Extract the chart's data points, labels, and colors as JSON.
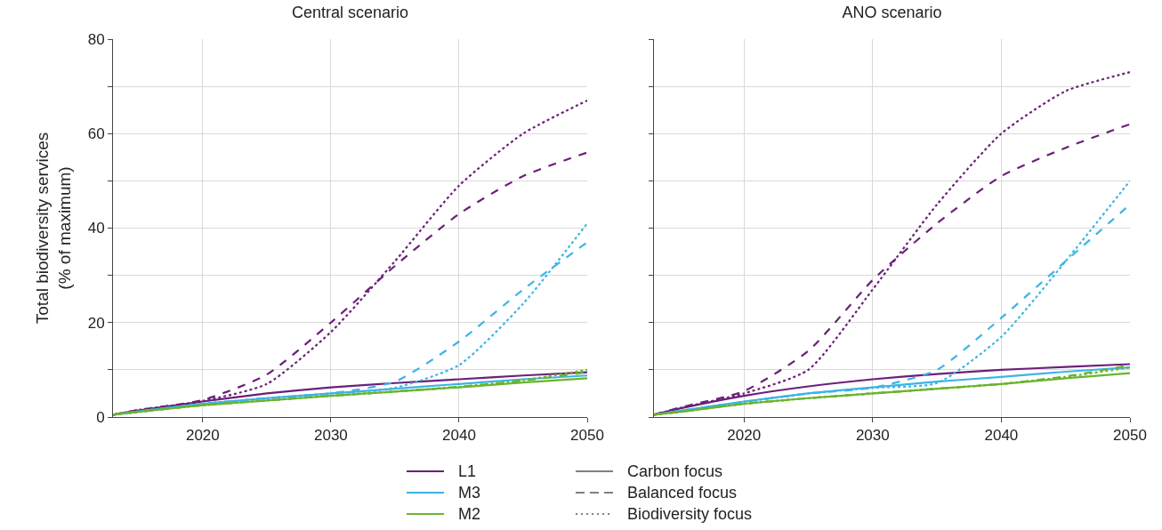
{
  "chart_data": [
    {
      "type": "line",
      "title": "Central scenario",
      "ylabel": "Total biodiversity services\n(% of maximum)",
      "x": [
        2013,
        2015,
        2020,
        2025,
        2030,
        2035,
        2040,
        2045,
        2050
      ],
      "series": [
        {
          "color": "#6b2078",
          "line_style": "solid",
          "values": [
            0.5,
            1.4,
            3.3,
            5.0,
            6.3,
            7.2,
            8.0,
            8.8,
            9.5
          ]
        },
        {
          "color": "#6b2078",
          "line_style": "dashed",
          "values": [
            0.5,
            1.5,
            3.6,
            9,
            20,
            32,
            43,
            51,
            56
          ]
        },
        {
          "color": "#6b2078",
          "line_style": "dotted",
          "values": [
            0.5,
            1.5,
            3.4,
            7,
            18,
            33,
            49,
            60,
            67
          ]
        },
        {
          "color": "#3cb4e6",
          "line_style": "solid",
          "values": [
            0.5,
            1.2,
            2.8,
            4.0,
            5.0,
            6.0,
            7.0,
            8.0,
            8.8
          ]
        },
        {
          "color": "#3cb4e6",
          "line_style": "dashed",
          "values": [
            0.5,
            1.2,
            2.8,
            4.0,
            5.0,
            7.5,
            16,
            27,
            37
          ]
        },
        {
          "color": "#3cb4e6",
          "line_style": "dotted",
          "values": [
            0.5,
            1.2,
            2.8,
            4.0,
            5.0,
            6.2,
            11,
            24,
            41
          ]
        },
        {
          "color": "#6ab42d",
          "line_style": "solid",
          "values": [
            0.5,
            1.1,
            2.5,
            3.5,
            4.5,
            5.4,
            6.3,
            7.3,
            8.2
          ]
        },
        {
          "color": "#6ab42d",
          "line_style": "dashed",
          "values": [
            0.5,
            1.1,
            2.5,
            3.5,
            4.5,
            5.4,
            6.4,
            7.7,
            9.5
          ]
        },
        {
          "color": "#6ab42d",
          "line_style": "dotted",
          "values": [
            0.5,
            1.1,
            2.5,
            3.5,
            4.5,
            5.4,
            6.4,
            7.8,
            10
          ]
        }
      ],
      "xlim": [
        2013,
        2050
      ],
      "xticks": [
        2020,
        2030,
        2040,
        2050
      ],
      "ylim": [
        0,
        80
      ],
      "yticks": [
        0,
        {
          "value": 10,
          "label": null
        },
        20,
        {
          "value": 30,
          "label": null
        },
        40,
        {
          "value": 50,
          "label": null
        },
        60,
        {
          "value": 70,
          "label": null
        },
        80
      ],
      "grid": true,
      "annotations": [
        "L1",
        "M3",
        "M2",
        "Carbon focus",
        "Balanced focus",
        "Biodiversity focus"
      ]
    },
    {
      "type": "line",
      "title": "ANO scenario",
      "x": [
        2013,
        2015,
        2020,
        2025,
        2030,
        2035,
        2040,
        2045,
        2050
      ],
      "series": [
        {
          "color": "#6b2078",
          "line_style": "solid",
          "values": [
            0.5,
            1.8,
            4.5,
            6.5,
            8.0,
            9.1,
            10.0,
            10.6,
            11.2
          ]
        },
        {
          "color": "#6b2078",
          "line_style": "dashed",
          "values": [
            0.5,
            2.0,
            5.5,
            14,
            29,
            41,
            51,
            57,
            62
          ]
        },
        {
          "color": "#6b2078",
          "line_style": "dotted",
          "values": [
            0.5,
            1.9,
            5.0,
            10,
            27,
            45,
            60,
            69,
            73
          ]
        },
        {
          "color": "#3cb4e6",
          "line_style": "solid",
          "values": [
            0.5,
            1.3,
            3.3,
            5.0,
            6.3,
            7.5,
            8.5,
            9.6,
            10.5
          ]
        },
        {
          "color": "#3cb4e6",
          "line_style": "dashed",
          "values": [
            0.5,
            1.3,
            3.2,
            5.0,
            6.2,
            10,
            21,
            33,
            45
          ]
        },
        {
          "color": "#3cb4e6",
          "line_style": "dotted",
          "values": [
            0.5,
            1.3,
            3.2,
            5.0,
            6.2,
            7.2,
            17,
            33,
            50
          ]
        },
        {
          "color": "#6ab42d",
          "line_style": "solid",
          "values": [
            0.5,
            1.1,
            2.8,
            4.0,
            5.0,
            6.0,
            7.0,
            8.2,
            9.3
          ]
        },
        {
          "color": "#6ab42d",
          "line_style": "dashed",
          "values": [
            0.5,
            1.1,
            2.8,
            4.0,
            5.0,
            6.0,
            7.0,
            8.6,
            11
          ]
        },
        {
          "color": "#6ab42d",
          "line_style": "dotted",
          "values": [
            0.5,
            1.1,
            2.8,
            4.0,
            5.0,
            6.0,
            7.0,
            8.5,
            10.5
          ]
        }
      ],
      "xlim": [
        2013,
        2050
      ],
      "xticks": [
        2020,
        2030,
        2040,
        2050
      ],
      "ylim": [
        0,
        80
      ],
      "yticks": [
        0,
        {
          "value": 10,
          "label": null
        },
        20,
        {
          "value": 30,
          "label": null
        },
        40,
        {
          "value": 50,
          "label": null
        },
        60,
        {
          "value": 70,
          "label": null
        },
        80
      ],
      "grid": true,
      "tick_labels": "x"
    }
  ]
}
